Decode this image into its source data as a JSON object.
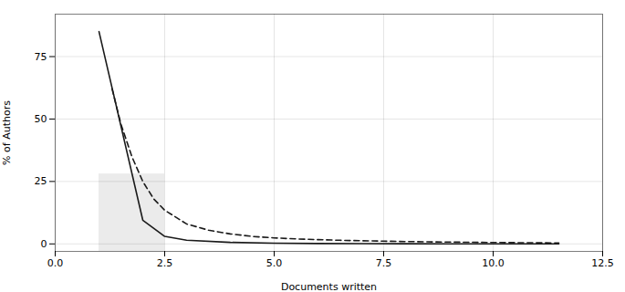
{
  "chart_data": {
    "type": "line",
    "xlabel": "Documents written",
    "ylabel": "% of Authors",
    "xlim": [
      0.0,
      12.5
    ],
    "ylim": [
      -3,
      92
    ],
    "xticks": [
      {
        "value": 0,
        "label": "0.0"
      },
      2.5,
      {
        "value": 5,
        "label": "5.0"
      },
      7.5,
      {
        "value": 10,
        "label": "10.0"
      },
      12.5
    ],
    "yticks": [
      0,
      25,
      50,
      75
    ],
    "grid": true,
    "shaded_region": {
      "x": [
        1.0,
        2.5
      ],
      "y": [
        -3,
        28
      ],
      "color": "#ebebeb"
    },
    "series": [
      {
        "color": "#1a1a1a",
        "line_style": "solid",
        "x": [
          1.0,
          2.0,
          2.5,
          3.0,
          4.0,
          5.0,
          6.0,
          7.0,
          8.0,
          9.0,
          10.0,
          11.0,
          11.5
        ],
        "values": [
          85.0,
          9.5,
          3.0,
          1.5,
          0.6,
          0.3,
          0.15,
          0.1,
          0.05,
          0.02,
          0.01,
          0.005,
          0.002
        ]
      },
      {
        "color": "#1a1a1a",
        "line_style": "dashed",
        "x": [
          1.3,
          1.5,
          1.75,
          2.0,
          2.25,
          2.5,
          3.0,
          3.5,
          4.0,
          4.5,
          5.0,
          5.5,
          6.0,
          6.5,
          7.0,
          7.5,
          8.0,
          8.5,
          9.0,
          9.5,
          10.0,
          10.5,
          11.0,
          11.5
        ],
        "values": [
          62.0,
          48.0,
          35.0,
          25.0,
          18.0,
          13.5,
          8.0,
          5.5,
          4.0,
          3.0,
          2.4,
          2.0,
          1.7,
          1.45,
          1.25,
          1.1,
          0.95,
          0.83,
          0.73,
          0.64,
          0.57,
          0.5,
          0.44,
          0.38
        ]
      }
    ]
  }
}
